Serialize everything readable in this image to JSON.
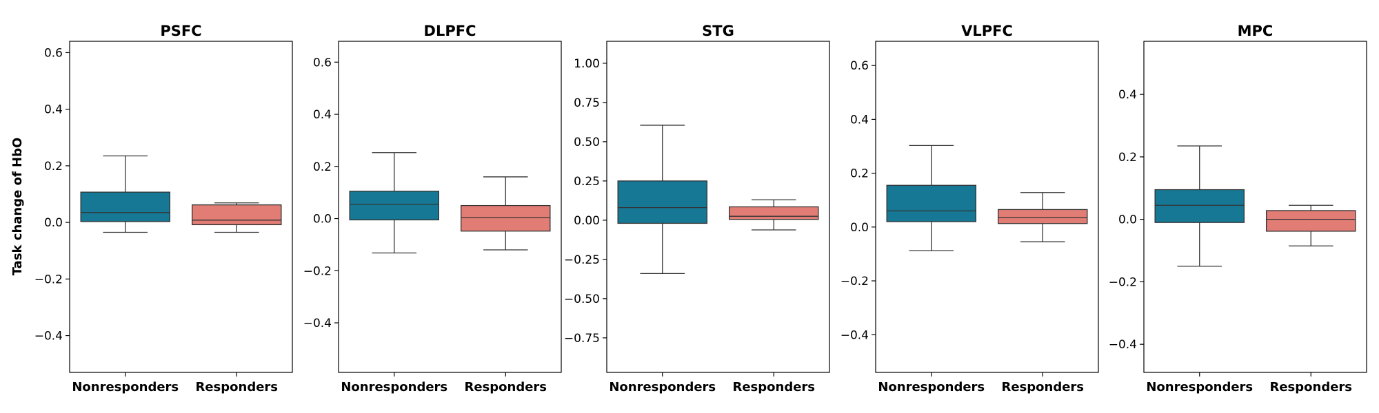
{
  "figure": {
    "ylabel": "Task change of HbO"
  },
  "chart_data": [
    {
      "type": "box",
      "title": "PSFC",
      "categories": [
        "Nonresponders",
        "Responders"
      ],
      "colors": [
        "#167894",
        "#e27d75"
      ],
      "ylim": [
        -0.53,
        0.64
      ],
      "yticks": [
        -0.4,
        -0.2,
        0.0,
        0.2,
        0.4,
        0.6
      ],
      "ytick_labels": [
        "−0.4",
        "−0.2",
        "0.0",
        "0.2",
        "0.4",
        "0.6"
      ],
      "boxes": [
        {
          "whislo": -0.035,
          "q1": 0.003,
          "med": 0.035,
          "q3": 0.107,
          "whishi": 0.235
        },
        {
          "whislo": -0.035,
          "q1": -0.008,
          "med": 0.008,
          "q3": 0.062,
          "whishi": 0.069
        }
      ]
    },
    {
      "type": "box",
      "title": "DLPFC",
      "categories": [
        "Nonresponders",
        "Responders"
      ],
      "colors": [
        "#167894",
        "#e27d75"
      ],
      "ylim": [
        -0.59,
        0.68
      ],
      "yticks": [
        -0.4,
        -0.2,
        0.0,
        0.2,
        0.4,
        0.6
      ],
      "ytick_labels": [
        "−0.4",
        "−0.2",
        "0.0",
        "0.2",
        "0.4",
        "0.6"
      ],
      "boxes": [
        {
          "whislo": -0.132,
          "q1": -0.005,
          "med": 0.055,
          "q3": 0.105,
          "whishi": 0.253
        },
        {
          "whislo": -0.12,
          "q1": -0.048,
          "med": 0.003,
          "q3": 0.05,
          "whishi": 0.16
        }
      ]
    },
    {
      "type": "box",
      "title": "STG",
      "categories": [
        "Nonresponders",
        "Responders"
      ],
      "colors": [
        "#167894",
        "#e27d75"
      ],
      "ylim": [
        -0.97,
        1.14
      ],
      "yticks": [
        -0.75,
        -0.5,
        -0.25,
        0.0,
        0.25,
        0.5,
        0.75,
        1.0
      ],
      "ytick_labels": [
        "−0.75",
        "−0.50",
        "−0.25",
        "0.00",
        "0.25",
        "0.50",
        "0.75",
        "1.00"
      ],
      "boxes": [
        {
          "whislo": -0.34,
          "q1": -0.02,
          "med": 0.08,
          "q3": 0.25,
          "whishi": 0.605
        },
        {
          "whislo": -0.062,
          "q1": 0.005,
          "med": 0.025,
          "q3": 0.085,
          "whishi": 0.13
        }
      ]
    },
    {
      "type": "box",
      "title": "VLPFC",
      "categories": [
        "Nonresponders",
        "Responders"
      ],
      "colors": [
        "#167894",
        "#e27d75"
      ],
      "ylim": [
        -0.54,
        0.69
      ],
      "yticks": [
        -0.4,
        -0.2,
        0.0,
        0.2,
        0.4,
        0.6
      ],
      "ytick_labels": [
        "−0.4",
        "−0.2",
        "0.0",
        "0.2",
        "0.4",
        "0.6"
      ],
      "boxes": [
        {
          "whislo": -0.088,
          "q1": 0.02,
          "med": 0.06,
          "q3": 0.155,
          "whishi": 0.303
        },
        {
          "whislo": -0.055,
          "q1": 0.013,
          "med": 0.035,
          "q3": 0.065,
          "whishi": 0.128
        }
      ]
    },
    {
      "type": "box",
      "title": "MPC",
      "categories": [
        "Nonresponders",
        "Responders"
      ],
      "colors": [
        "#167894",
        "#e27d75"
      ],
      "ylim": [
        -0.49,
        0.57
      ],
      "yticks": [
        -0.4,
        -0.2,
        0.0,
        0.2,
        0.4
      ],
      "ytick_labels": [
        "−0.4",
        "−0.2",
        "0.0",
        "0.2",
        "0.4"
      ],
      "boxes": [
        {
          "whislo": -0.15,
          "q1": -0.01,
          "med": 0.045,
          "q3": 0.095,
          "whishi": 0.235
        },
        {
          "whislo": -0.085,
          "q1": -0.038,
          "med": 0.0,
          "q3": 0.028,
          "whishi": 0.045
        }
      ]
    }
  ]
}
